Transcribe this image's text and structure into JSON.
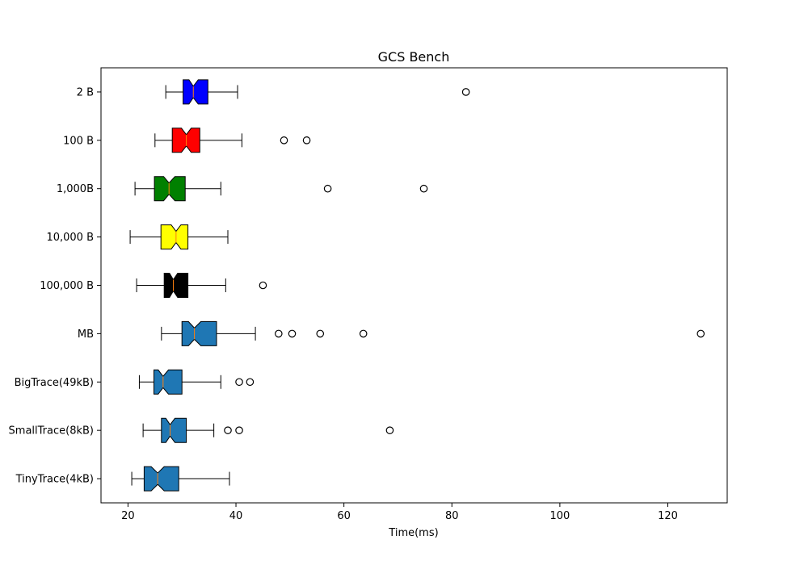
{
  "chart_data": {
    "type": "boxplot",
    "orientation": "horizontal",
    "notched": true,
    "title": "GCS Bench",
    "xlabel": "Time(ms)",
    "ylabel": "",
    "xlim": [
      15,
      131
    ],
    "xticks": [
      20,
      40,
      60,
      80,
      100,
      120
    ],
    "grid": false,
    "series": [
      {
        "category": "TinyTrace(4kB)",
        "whisker_low": 20.7,
        "q1": 23.0,
        "median": 25.5,
        "q3": 29.4,
        "notch_low": 24.3,
        "notch_high": 26.7,
        "whisker_high": 38.8,
        "outliers": [],
        "color": "#1f77b4"
      },
      {
        "category": "SmallTrace(8kB)",
        "whisker_low": 22.8,
        "q1": 26.2,
        "median": 27.8,
        "q3": 30.8,
        "notch_low": 27.0,
        "notch_high": 28.7,
        "whisker_high": 35.9,
        "outliers": [
          38.5,
          40.6,
          68.5
        ],
        "color": "#1f77b4"
      },
      {
        "category": "BigTrace(49kB)",
        "whisker_low": 22.1,
        "q1": 24.8,
        "median": 26.5,
        "q3": 30.0,
        "notch_low": 25.6,
        "notch_high": 27.5,
        "whisker_high": 37.2,
        "outliers": [
          40.6,
          42.6
        ],
        "color": "#1f77b4"
      },
      {
        "category": "MB",
        "whisker_low": 26.2,
        "q1": 30.0,
        "median": 32.3,
        "q3": 36.4,
        "notch_low": 31.2,
        "notch_high": 33.5,
        "whisker_high": 43.6,
        "outliers": [
          47.9,
          50.4,
          55.6,
          63.6,
          126.1
        ],
        "color": "#1f77b4"
      },
      {
        "category": "100,000 B",
        "whisker_low": 21.6,
        "q1": 26.7,
        "median": 28.4,
        "q3": 31.1,
        "notch_low": 27.7,
        "notch_high": 29.2,
        "whisker_high": 38.1,
        "outliers": [
          45.0
        ],
        "color": "#000000"
      },
      {
        "category": "10,000 B",
        "whisker_low": 20.4,
        "q1": 26.1,
        "median": 28.9,
        "q3": 31.1,
        "notch_low": 28.0,
        "notch_high": 29.8,
        "whisker_high": 38.5,
        "outliers": [],
        "color": "#ffff00"
      },
      {
        "category": "1,000B",
        "whisker_low": 21.3,
        "q1": 24.9,
        "median": 27.6,
        "q3": 30.6,
        "notch_low": 26.6,
        "notch_high": 28.7,
        "whisker_high": 37.2,
        "outliers": [
          57.0,
          74.8
        ],
        "color": "#008000"
      },
      {
        "category": "100 B",
        "whisker_low": 25.0,
        "q1": 28.2,
        "median": 30.8,
        "q3": 33.3,
        "notch_low": 29.9,
        "notch_high": 31.7,
        "whisker_high": 41.1,
        "outliers": [
          48.9,
          53.1
        ],
        "color": "#ff0000"
      },
      {
        "category": "2 B",
        "whisker_low": 27.0,
        "q1": 30.2,
        "median": 32.1,
        "q3": 34.8,
        "notch_low": 31.3,
        "notch_high": 33.0,
        "whisker_high": 40.3,
        "outliers": [
          82.6
        ],
        "color": "#0000ff"
      }
    ]
  }
}
